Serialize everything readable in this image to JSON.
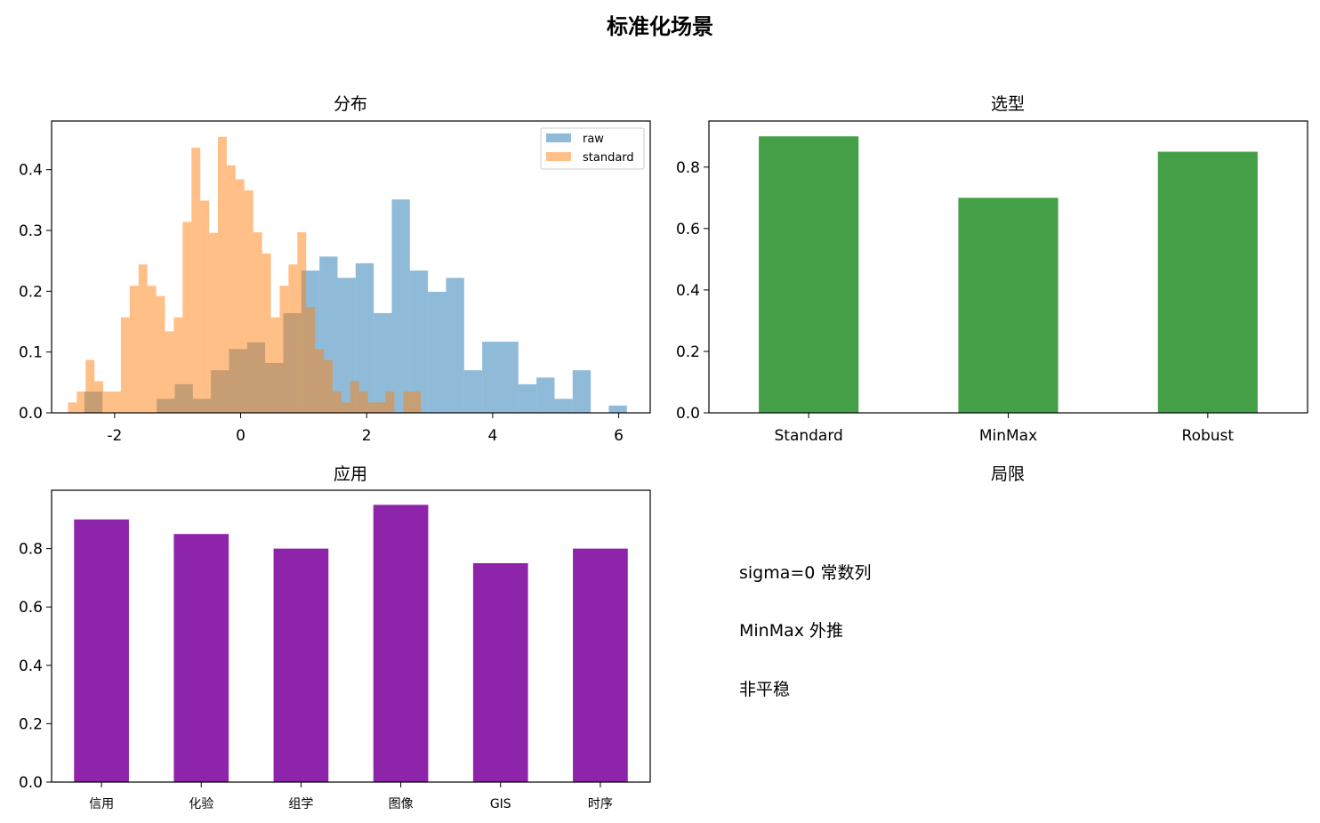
{
  "figure": {
    "title": "标准化场景"
  },
  "chart_data": [
    {
      "type": "histogram",
      "title": "分布",
      "xlim": [
        -3.0,
        6.5
      ],
      "ylim": [
        0,
        0.48
      ],
      "xticks": [
        -2,
        0,
        2,
        4,
        6
      ],
      "yticks": [
        0.0,
        0.1,
        0.2,
        0.3,
        0.4
      ],
      "legend_position": "top-right",
      "series": [
        {
          "name": "raw",
          "color": "#1f77b4",
          "opacity": 0.5,
          "bin_width": 0.287,
          "bins": [
            {
              "x0": -2.48,
              "height": 0.035
            },
            {
              "x0": -2.193,
              "height": 0.0
            },
            {
              "x0": -1.906,
              "height": 0.0
            },
            {
              "x0": -1.619,
              "height": 0.0
            },
            {
              "x0": -1.332,
              "height": 0.023
            },
            {
              "x0": -1.045,
              "height": 0.047
            },
            {
              "x0": -0.758,
              "height": 0.023
            },
            {
              "x0": -0.471,
              "height": 0.07
            },
            {
              "x0": -0.184,
              "height": 0.105
            },
            {
              "x0": 0.103,
              "height": 0.116
            },
            {
              "x0": 0.39,
              "height": 0.082
            },
            {
              "x0": 0.677,
              "height": 0.164
            },
            {
              "x0": 0.964,
              "height": 0.234
            },
            {
              "x0": 1.251,
              "height": 0.257
            },
            {
              "x0": 1.538,
              "height": 0.222
            },
            {
              "x0": 1.825,
              "height": 0.246
            },
            {
              "x0": 2.112,
              "height": 0.164
            },
            {
              "x0": 2.399,
              "height": 0.351
            },
            {
              "x0": 2.686,
              "height": 0.234
            },
            {
              "x0": 2.973,
              "height": 0.199
            },
            {
              "x0": 3.26,
              "height": 0.222
            },
            {
              "x0": 3.547,
              "height": 0.07
            },
            {
              "x0": 3.834,
              "height": 0.117
            },
            {
              "x0": 4.121,
              "height": 0.117
            },
            {
              "x0": 4.408,
              "height": 0.047
            },
            {
              "x0": 4.695,
              "height": 0.058
            },
            {
              "x0": 4.982,
              "height": 0.023
            },
            {
              "x0": 5.269,
              "height": 0.07
            },
            {
              "x0": 5.556,
              "height": 0.0
            },
            {
              "x0": 5.843,
              "height": 0.012
            }
          ]
        },
        {
          "name": "standard",
          "color": "#ff7f0e",
          "opacity": 0.5,
          "bin_width": 0.14,
          "bins": [
            {
              "x0": -2.74,
              "height": 0.017
            },
            {
              "x0": -2.6,
              "height": 0.035
            },
            {
              "x0": -2.46,
              "height": 0.087
            },
            {
              "x0": -2.32,
              "height": 0.052
            },
            {
              "x0": -2.18,
              "height": 0.035
            },
            {
              "x0": -2.04,
              "height": 0.035
            },
            {
              "x0": -1.9,
              "height": 0.157
            },
            {
              "x0": -1.76,
              "height": 0.209
            },
            {
              "x0": -1.62,
              "height": 0.244
            },
            {
              "x0": -1.48,
              "height": 0.209
            },
            {
              "x0": -1.34,
              "height": 0.192
            },
            {
              "x0": -1.2,
              "height": 0.134
            },
            {
              "x0": -1.06,
              "height": 0.157
            },
            {
              "x0": -0.92,
              "height": 0.314
            },
            {
              "x0": -0.78,
              "height": 0.436
            },
            {
              "x0": -0.64,
              "height": 0.349
            },
            {
              "x0": -0.5,
              "height": 0.296
            },
            {
              "x0": -0.36,
              "height": 0.454
            },
            {
              "x0": -0.22,
              "height": 0.407
            },
            {
              "x0": -0.08,
              "height": 0.384
            },
            {
              "x0": 0.06,
              "height": 0.366
            },
            {
              "x0": 0.2,
              "height": 0.297
            },
            {
              "x0": 0.34,
              "height": 0.262
            },
            {
              "x0": 0.48,
              "height": 0.157
            },
            {
              "x0": 0.62,
              "height": 0.209
            },
            {
              "x0": 0.76,
              "height": 0.244
            },
            {
              "x0": 0.9,
              "height": 0.297
            },
            {
              "x0": 1.04,
              "height": 0.174
            },
            {
              "x0": 1.18,
              "height": 0.105
            },
            {
              "x0": 1.32,
              "height": 0.087
            },
            {
              "x0": 1.46,
              "height": 0.035
            },
            {
              "x0": 1.6,
              "height": 0.017
            },
            {
              "x0": 1.74,
              "height": 0.052
            },
            {
              "x0": 1.88,
              "height": 0.035
            },
            {
              "x0": 2.02,
              "height": 0.017
            },
            {
              "x0": 2.16,
              "height": 0.017
            },
            {
              "x0": 2.3,
              "height": 0.035
            },
            {
              "x0": 2.44,
              "height": 0.0
            },
            {
              "x0": 2.58,
              "height": 0.035
            },
            {
              "x0": 2.72,
              "height": 0.035
            }
          ]
        }
      ]
    },
    {
      "type": "bar",
      "title": "选型",
      "categories": [
        "Standard",
        "MinMax",
        "Robust"
      ],
      "values": [
        0.9,
        0.7,
        0.85
      ],
      "color": "#43a047",
      "ylim": [
        0,
        0.95
      ],
      "yticks": [
        0.0,
        0.2,
        0.4,
        0.6,
        0.8
      ]
    },
    {
      "type": "bar",
      "title": "应用",
      "categories": [
        "信用",
        "化验",
        "组学",
        "图像",
        "GIS",
        "时序"
      ],
      "values": [
        0.9,
        0.85,
        0.8,
        0.95,
        0.75,
        0.8
      ],
      "color": "#8e24aa",
      "ylim": [
        0,
        1.0
      ],
      "yticks": [
        0.0,
        0.2,
        0.4,
        0.6,
        0.8
      ]
    }
  ],
  "text_panel": {
    "title": "局限",
    "items": [
      "sigma=0 常数列",
      "MinMax 外推",
      "非平稳"
    ]
  }
}
